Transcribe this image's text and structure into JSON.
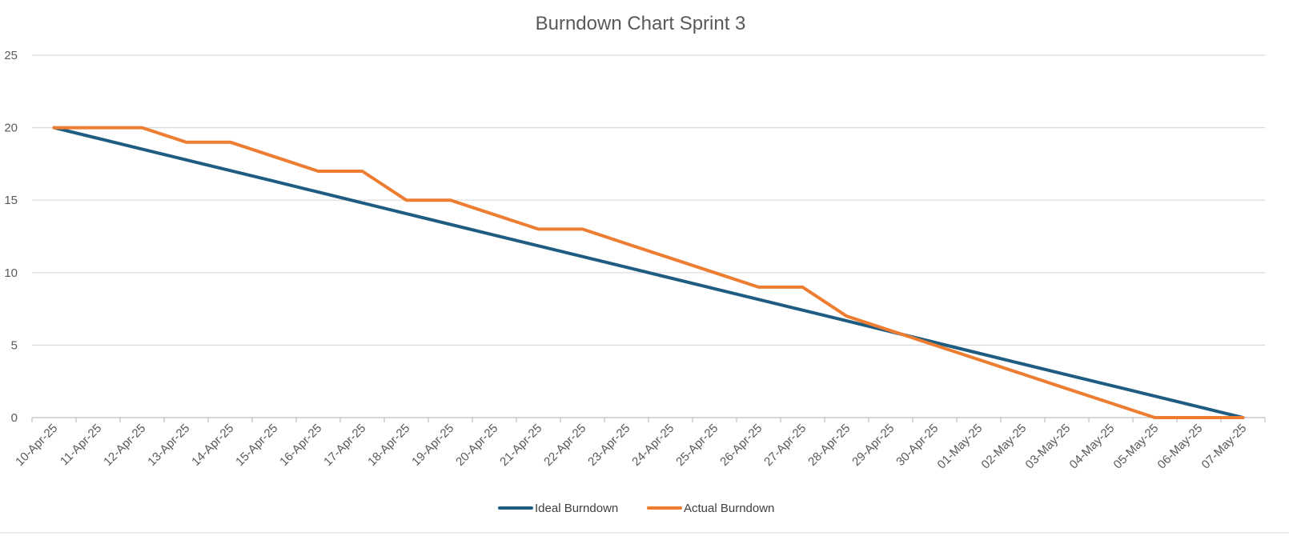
{
  "chart_data": {
    "type": "line",
    "title": "Burndown Chart Sprint 3",
    "xlabel": "",
    "ylabel": "",
    "ylim": [
      0,
      25
    ],
    "yticks": [
      "0",
      "5",
      "10",
      "15",
      "20",
      "25"
    ],
    "grid": true,
    "legend_position": "bottom",
    "categories": [
      "10-Apr-25",
      "11-Apr-25",
      "12-Apr-25",
      "13-Apr-25",
      "14-Apr-25",
      "15-Apr-25",
      "16-Apr-25",
      "17-Apr-25",
      "18-Apr-25",
      "19-Apr-25",
      "20-Apr-25",
      "21-Apr-25",
      "22-Apr-25",
      "23-Apr-25",
      "24-Apr-25",
      "25-Apr-25",
      "26-Apr-25",
      "27-Apr-25",
      "28-Apr-25",
      "29-Apr-25",
      "30-Apr-25",
      "01-May-25",
      "02-May-25",
      "03-May-25",
      "04-May-25",
      "05-May-25",
      "06-May-25",
      "07-May-25"
    ],
    "series": [
      {
        "name": "Ideal Burndown",
        "color": "#1f5c82",
        "values": [
          20,
          19.26,
          18.52,
          17.78,
          17.04,
          16.3,
          15.56,
          14.81,
          14.07,
          13.33,
          12.59,
          11.85,
          11.11,
          10.37,
          9.63,
          8.89,
          8.15,
          7.41,
          6.67,
          5.93,
          5.19,
          4.44,
          3.7,
          2.96,
          2.22,
          1.48,
          0.74,
          0
        ]
      },
      {
        "name": "Actual Burndown",
        "color": "#ed7d31",
        "values": [
          20,
          20,
          20,
          19,
          19,
          18,
          17,
          17,
          15,
          15,
          14,
          13,
          13,
          12,
          11,
          10,
          9,
          9,
          7,
          6,
          5,
          4,
          3,
          2,
          1,
          0,
          0,
          0
        ]
      }
    ]
  }
}
